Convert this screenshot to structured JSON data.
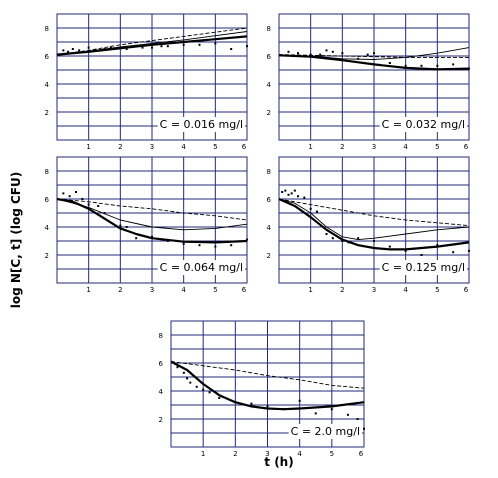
{
  "figure": {
    "ylabel": "log N[C, t] (log CFU)",
    "xlabel": "t (h)"
  },
  "chart_data": [
    {
      "type": "line",
      "annotation": "C = 0.016 mg/l",
      "xlim": [
        0,
        6
      ],
      "ylim": [
        0,
        9
      ],
      "xticks": [
        "1",
        "2",
        "3",
        "4",
        "5",
        "6"
      ],
      "yticks": [
        "2",
        "4",
        "6",
        "8"
      ],
      "grid": true,
      "series": [
        {
          "style": "dashed",
          "x": [
            0,
            1,
            2,
            3,
            4,
            5,
            6
          ],
          "y": [
            6.1,
            6.4,
            6.8,
            7.1,
            7.4,
            7.7,
            8.0
          ]
        },
        {
          "style": "thin",
          "x": [
            0,
            1,
            2,
            3,
            4,
            5,
            6
          ],
          "y": [
            6.1,
            6.35,
            6.65,
            6.9,
            7.15,
            7.45,
            7.75
          ]
        },
        {
          "style": "thick",
          "x": [
            0,
            1,
            2,
            3,
            4,
            5,
            6
          ],
          "y": [
            6.1,
            6.3,
            6.55,
            6.8,
            7.0,
            7.2,
            7.4
          ]
        },
        {
          "style": "points",
          "x": [
            0.2,
            0.35,
            0.5,
            0.7,
            1.0,
            1.2,
            1.5,
            1.7,
            2.0,
            2.2,
            2.5,
            2.7,
            3.0,
            3.3,
            3.5,
            4.0,
            4.5,
            5.0,
            5.5,
            6.0
          ],
          "y": [
            6.4,
            6.3,
            6.5,
            6.4,
            6.6,
            6.4,
            6.5,
            6.6,
            6.6,
            6.5,
            6.7,
            6.6,
            6.6,
            6.7,
            6.7,
            6.8,
            6.8,
            6.9,
            6.5,
            6.7
          ]
        }
      ]
    },
    {
      "type": "line",
      "annotation": "C = 0.032 mg/l",
      "xlim": [
        0,
        6
      ],
      "ylim": [
        0,
        9
      ],
      "xticks": [
        "1",
        "2",
        "3",
        "4",
        "5",
        "6"
      ],
      "yticks": [
        "2",
        "4",
        "6",
        "8"
      ],
      "grid": true,
      "series": [
        {
          "style": "dashed",
          "x": [
            0,
            1,
            2,
            3,
            4,
            5,
            6
          ],
          "y": [
            6.1,
            6.05,
            6.0,
            5.95,
            5.9,
            5.9,
            5.9
          ]
        },
        {
          "style": "thin",
          "x": [
            0,
            1,
            2,
            3,
            4,
            5,
            6
          ],
          "y": [
            6.05,
            6.0,
            5.8,
            5.75,
            5.9,
            6.2,
            6.6
          ]
        },
        {
          "style": "thick",
          "x": [
            0,
            1,
            2,
            3,
            4,
            5,
            6
          ],
          "y": [
            6.05,
            5.95,
            5.7,
            5.4,
            5.15,
            5.05,
            5.1
          ]
        },
        {
          "style": "points",
          "x": [
            0.3,
            0.6,
            1.0,
            1.3,
            1.5,
            1.7,
            2.0,
            2.5,
            2.8,
            3.0,
            3.5,
            4.0,
            4.5,
            5.0,
            5.5,
            6.0
          ],
          "y": [
            6.3,
            6.2,
            6.1,
            6.1,
            6.4,
            6.3,
            6.2,
            5.8,
            6.1,
            6.2,
            5.5,
            5.3,
            5.3,
            5.3,
            5.4,
            5.1
          ]
        }
      ]
    },
    {
      "type": "line",
      "annotation": "C = 0.064 mg/l",
      "xlim": [
        0,
        6
      ],
      "ylim": [
        0,
        9
      ],
      "xticks": [
        "1",
        "2",
        "3",
        "4",
        "5",
        "6"
      ],
      "yticks": [
        "2",
        "4",
        "6",
        "8"
      ],
      "grid": true,
      "series": [
        {
          "style": "dashed",
          "x": [
            0,
            1,
            2,
            3,
            4,
            5,
            6
          ],
          "y": [
            6.0,
            5.8,
            5.5,
            5.3,
            5.0,
            4.8,
            4.5
          ]
        },
        {
          "style": "thin",
          "x": [
            0,
            1,
            2,
            3,
            4,
            5,
            6
          ],
          "y": [
            6.0,
            5.4,
            4.5,
            4.0,
            3.8,
            3.9,
            4.2
          ]
        },
        {
          "style": "thick",
          "x": [
            0,
            0.5,
            1,
            1.5,
            2,
            2.5,
            3,
            4,
            5,
            6
          ],
          "y": [
            6.0,
            5.8,
            5.3,
            4.6,
            3.9,
            3.5,
            3.2,
            2.95,
            2.9,
            3.0
          ]
        },
        {
          "style": "points",
          "x": [
            0.2,
            0.4,
            0.6,
            0.8,
            1.0,
            1.3,
            1.5,
            2.0,
            2.2,
            2.5,
            3.0,
            3.5,
            4.0,
            4.5,
            5.0,
            5.5,
            6.0
          ],
          "y": [
            6.4,
            6.2,
            6.5,
            6.0,
            5.6,
            5.5,
            5.0,
            4.1,
            4.0,
            3.2,
            3.3,
            3.0,
            2.8,
            2.7,
            2.6,
            2.7,
            3.1
          ]
        }
      ]
    },
    {
      "type": "line",
      "annotation": "C = 0.125 mg/l",
      "xlim": [
        0,
        6
      ],
      "ylim": [
        0,
        9
      ],
      "xticks": [
        "1",
        "2",
        "3",
        "4",
        "5",
        "6"
      ],
      "yticks": [
        "2",
        "4",
        "6",
        "8"
      ],
      "grid": true,
      "series": [
        {
          "style": "dashed",
          "x": [
            0,
            1,
            2,
            3,
            4,
            5,
            6
          ],
          "y": [
            6.0,
            5.6,
            5.2,
            4.8,
            4.5,
            4.3,
            4.1
          ]
        },
        {
          "style": "thin",
          "x": [
            0,
            0.5,
            1,
            1.5,
            2,
            2.5,
            3,
            4,
            5,
            6
          ],
          "y": [
            6.0,
            5.7,
            5.0,
            4.0,
            3.3,
            3.1,
            3.2,
            3.5,
            3.8,
            4.0
          ]
        },
        {
          "style": "thick",
          "x": [
            0,
            0.5,
            1,
            1.5,
            2,
            2.5,
            3,
            3.5,
            4,
            5,
            6
          ],
          "y": [
            6.0,
            5.5,
            4.7,
            3.8,
            3.1,
            2.7,
            2.5,
            2.4,
            2.4,
            2.6,
            2.9
          ]
        },
        {
          "style": "points",
          "x": [
            0.1,
            0.2,
            0.3,
            0.4,
            0.5,
            0.6,
            0.8,
            1.0,
            1.2,
            1.5,
            1.7,
            2.0,
            2.2,
            2.5,
            3.0,
            3.5,
            4.0,
            4.5,
            5.0,
            5.5,
            6.0
          ],
          "y": [
            6.5,
            6.6,
            6.3,
            6.4,
            6.6,
            6.2,
            6.1,
            5.3,
            5.1,
            3.5,
            3.2,
            3.0,
            2.9,
            3.2,
            3.0,
            2.6,
            2.3,
            2.0,
            2.7,
            2.2,
            2.3
          ]
        }
      ]
    },
    {
      "type": "line",
      "annotation": "C = 2.0 mg/l",
      "xlim": [
        0,
        6
      ],
      "ylim": [
        0,
        9
      ],
      "xticks": [
        "1",
        "2",
        "3",
        "4",
        "5",
        "6"
      ],
      "yticks": [
        "2",
        "4",
        "6",
        "8"
      ],
      "grid": true,
      "series": [
        {
          "style": "dashed",
          "x": [
            0,
            1,
            2,
            3,
            4,
            5,
            6
          ],
          "y": [
            6.1,
            5.8,
            5.5,
            5.1,
            4.8,
            4.4,
            4.2
          ]
        },
        {
          "style": "thick",
          "x": [
            0,
            0.5,
            1,
            1.5,
            2,
            2.5,
            3,
            3.5,
            4,
            5,
            6
          ],
          "y": [
            6.1,
            5.5,
            4.5,
            3.7,
            3.2,
            2.9,
            2.75,
            2.7,
            2.75,
            2.9,
            3.2
          ]
        },
        {
          "style": "points",
          "x": [
            0.2,
            0.4,
            0.5,
            0.6,
            0.8,
            1.0,
            1.2,
            1.5,
            2.0,
            2.5,
            3.0,
            3.5,
            4.0,
            4.5,
            5.0,
            5.5,
            5.8,
            6.0
          ],
          "y": [
            5.7,
            5.3,
            4.9,
            4.6,
            4.3,
            4.1,
            3.9,
            3.5,
            3.2,
            3.1,
            2.9,
            2.7,
            3.3,
            2.4,
            2.7,
            2.3,
            2.0,
            1.3
          ]
        }
      ]
    }
  ]
}
